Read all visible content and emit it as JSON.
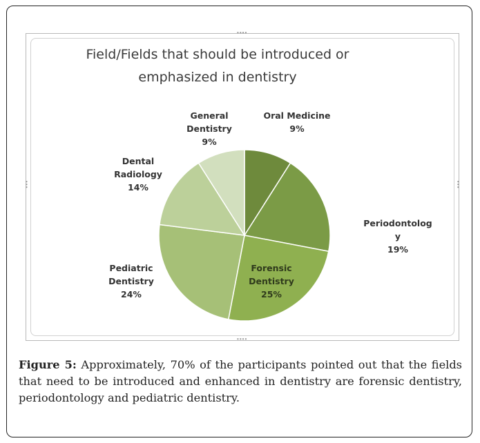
{
  "chart_data": {
    "type": "pie",
    "title": "Field/Fields that should be introduced or emphasized in dentistry",
    "slices": [
      {
        "name": "Oral Medicine",
        "value": 9,
        "label": "Oral Medicine\n9%",
        "color": "#6e8a3c"
      },
      {
        "name": "Periodontology",
        "value": 19,
        "label": "Periodontolog\ny\n19%",
        "color": "#7b9b46"
      },
      {
        "name": "Forensic Dentistry",
        "value": 25,
        "label": "Forensic\nDentistry\n25%",
        "color": "#8fb050"
      },
      {
        "name": "Pediatric Dentistry",
        "value": 24,
        "label": "Pediatric\nDentistry\n24%",
        "color": "#a6c077"
      },
      {
        "name": "Dental Radiology",
        "value": 14,
        "label": "Dental\nRadiology\n14%",
        "color": "#bcd09a"
      },
      {
        "name": "General Dentistry",
        "value": 9,
        "label": "General\nDentistry\n9%",
        "color": "#d2dfbe"
      }
    ],
    "legend": "none",
    "labels_outside": true
  },
  "caption": {
    "label": "Figure 5:",
    "text": " Approximately, 70% of the participants pointed out that the fields that need to be introduced and enhanced in dentistry are forensic dentistry, periodontology and pediatric dentistry."
  }
}
